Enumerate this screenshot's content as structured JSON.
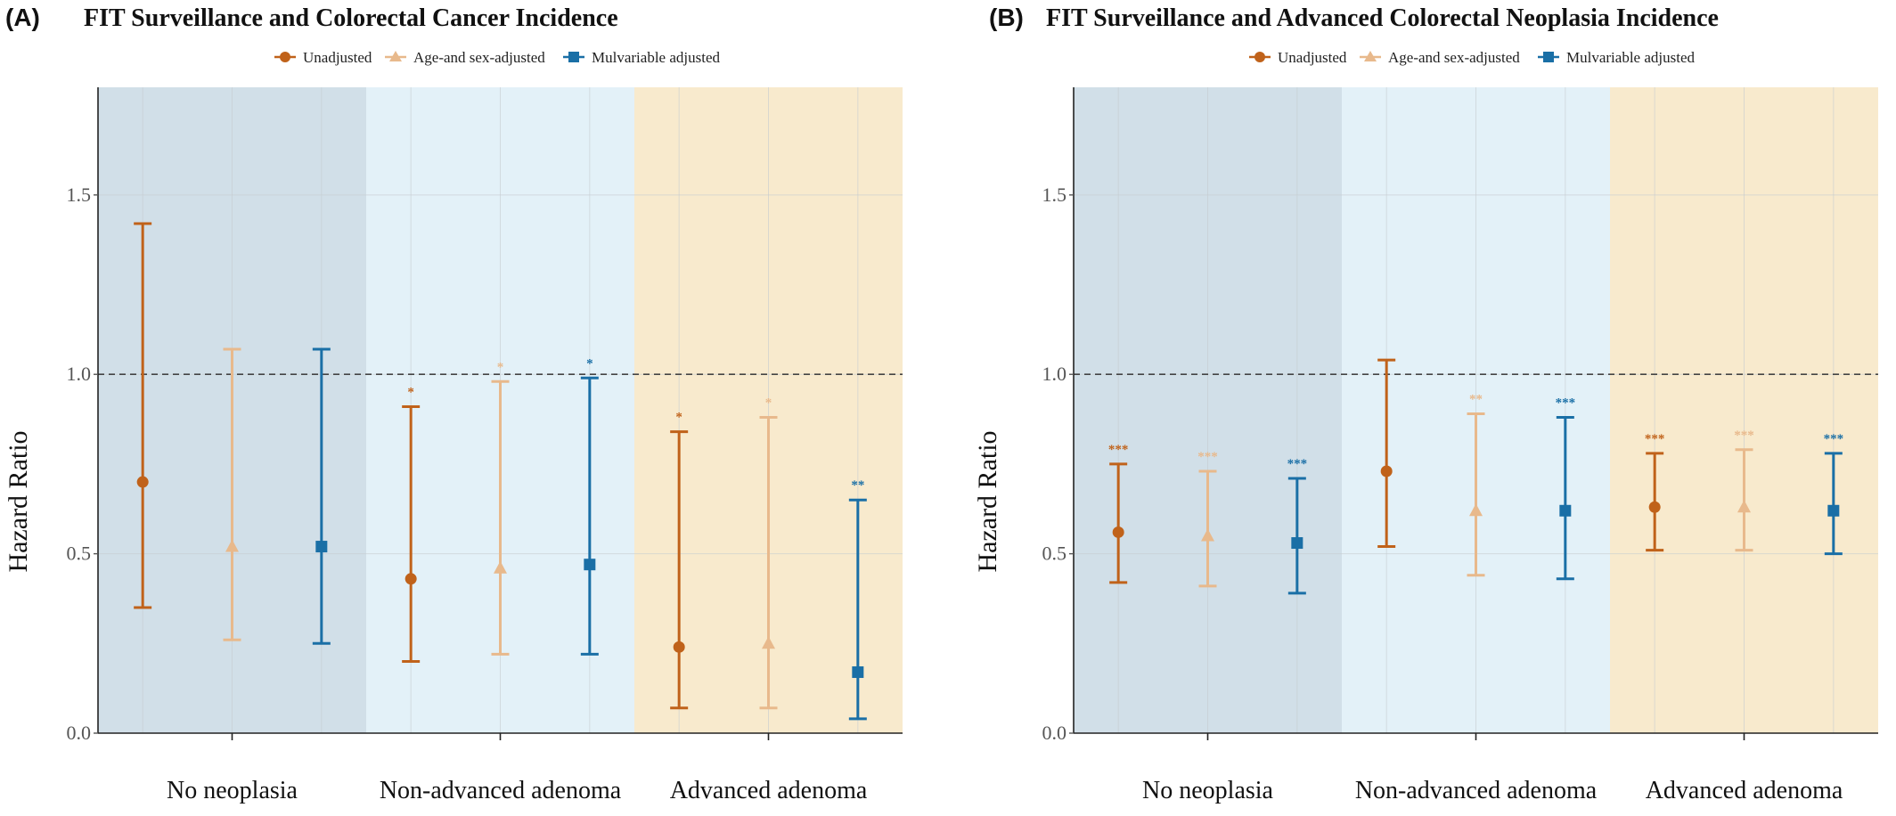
{
  "colors": {
    "unadjusted": "#c0621a",
    "age_sex": "#e8b98c",
    "multivariable": "#1a6fa6",
    "no_neoplasia_bg": "#d1dfe8",
    "non_advanced_bg": "#e3f1f8",
    "advanced_bg": "#f8eacd"
  },
  "legend": [
    {
      "label": "Unadjusted",
      "marker": "circle"
    },
    {
      "label": "Age-and sex-adjusted",
      "marker": "triangle"
    },
    {
      "label": "Mulvariable adjusted",
      "marker": "square"
    }
  ],
  "chart_data": [
    {
      "type": "errorbar",
      "panel": "(A)",
      "title": "FIT Surveillance and Colorectal Cancer Incidence",
      "ylabel": "Hazard Ratio",
      "xlabel": "",
      "ylim": [
        0,
        1.8
      ],
      "yticks": [
        "0.0",
        "0.5",
        "1.0",
        "1.5"
      ],
      "reference_line": 1.0,
      "categories": [
        "No neoplasia",
        "Non-advanced adenoma",
        "Advanced adenoma"
      ],
      "series": [
        {
          "name": "Unadjusted",
          "marker": "circle",
          "values": [
            0.7,
            0.43,
            0.24
          ],
          "lower": [
            0.35,
            0.2,
            0.07
          ],
          "upper": [
            1.42,
            0.91,
            0.84
          ],
          "significance": [
            "",
            "*",
            "*"
          ]
        },
        {
          "name": "Age-and sex-adjusted",
          "marker": "triangle",
          "values": [
            0.52,
            0.46,
            0.25
          ],
          "lower": [
            0.26,
            0.22,
            0.07
          ],
          "upper": [
            1.07,
            0.98,
            0.88
          ],
          "significance": [
            "",
            "*",
            "*"
          ]
        },
        {
          "name": "Mulvariable adjusted",
          "marker": "square",
          "values": [
            0.52,
            0.47,
            0.17
          ],
          "lower": [
            0.25,
            0.22,
            0.04
          ],
          "upper": [
            1.07,
            0.99,
            0.65
          ],
          "significance": [
            "",
            "*",
            "**"
          ]
        }
      ]
    },
    {
      "type": "errorbar",
      "panel": "(B)",
      "title": "FIT Surveillance and Advanced Colorectal Neoplasia Incidence",
      "ylabel": "Hazard Ratio",
      "xlabel": "",
      "ylim": [
        0,
        1.8
      ],
      "yticks": [
        "0.0",
        "0.5",
        "1.0",
        "1.5"
      ],
      "reference_line": 1.0,
      "categories": [
        "No neoplasia",
        "Non-advanced adenoma",
        "Advanced adenoma"
      ],
      "series": [
        {
          "name": "Unadjusted",
          "marker": "circle",
          "values": [
            0.56,
            0.73,
            0.63
          ],
          "lower": [
            0.42,
            0.52,
            0.51
          ],
          "upper": [
            0.75,
            1.04,
            0.78
          ],
          "significance": [
            "***",
            "",
            "***"
          ]
        },
        {
          "name": "Age-and sex-adjusted",
          "marker": "triangle",
          "values": [
            0.55,
            0.62,
            0.63
          ],
          "lower": [
            0.41,
            0.44,
            0.51
          ],
          "upper": [
            0.73,
            0.89,
            0.79
          ],
          "significance": [
            "***",
            "**",
            "***"
          ]
        },
        {
          "name": "Mulvariable adjusted",
          "marker": "square",
          "values": [
            0.53,
            0.62,
            0.62
          ],
          "lower": [
            0.39,
            0.43,
            0.5
          ],
          "upper": [
            0.71,
            0.88,
            0.78
          ],
          "significance": [
            "***",
            "***",
            "***"
          ]
        }
      ]
    }
  ]
}
